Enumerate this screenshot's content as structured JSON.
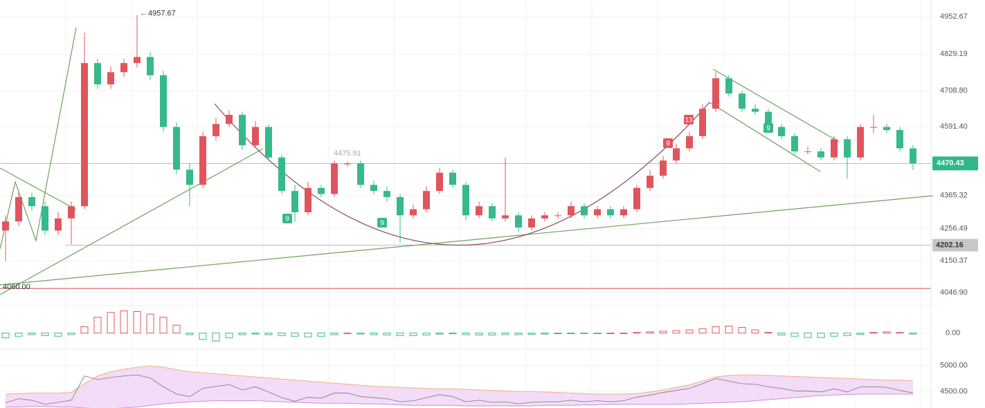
{
  "chart_data": {
    "type": "candlestick",
    "open": [
      4250,
      4280,
      4360,
      4330,
      4250,
      4290,
      4330,
      4800,
      4730,
      4770,
      4800,
      4820,
      4760,
      4590,
      4450,
      4400,
      4560,
      4600,
      4630,
      4530,
      4590,
      4490,
      4380,
      4310,
      4390,
      4370,
      4470,
      4470,
      4400,
      4380,
      4360,
      4300,
      4320,
      4380,
      4440,
      4400,
      4300,
      4330,
      4290,
      4300,
      4260,
      4290,
      4300,
      4300,
      4330,
      4300,
      4320,
      4300,
      4320,
      4390,
      4430,
      4480,
      4520,
      4560,
      4650,
      4750,
      4700,
      4650,
      4640,
      4590,
      4560,
      4510,
      4510,
      4490,
      4550,
      4490,
      4590,
      4590,
      4580,
      4520
    ],
    "high": [
      4300,
      4380,
      4375,
      4345,
      4310,
      4345,
      4900,
      4815,
      4790,
      4815,
      4957.67,
      4835,
      4775,
      4605,
      4470,
      4575,
      4620,
      4645,
      4640,
      4610,
      4600,
      4500,
      4400,
      4410,
      4400,
      4480,
      4475.91,
      4480,
      4415,
      4395,
      4370,
      4335,
      4395,
      4455,
      4450,
      4410,
      4345,
      4340,
      4490,
      4310,
      4300,
      4310,
      4310,
      4345,
      4340,
      4330,
      4330,
      4330,
      4400,
      4450,
      4495,
      4535,
      4575,
      4665,
      4770,
      4760,
      4710,
      4665,
      4650,
      4600,
      4570,
      4525,
      4520,
      4560,
      4560,
      4600,
      4630,
      4600,
      4590,
      4530
    ],
    "low": [
      4150,
      4265,
      4315,
      4235,
      4235,
      4205,
      4320,
      4715,
      4715,
      4755,
      4785,
      4745,
      4575,
      4435,
      4330,
      4390,
      4545,
      4590,
      4515,
      4520,
      4480,
      4370,
      4280,
      4300,
      4360,
      4360,
      4460,
      4390,
      4370,
      4345,
      4210,
      4290,
      4310,
      4370,
      4390,
      4285,
      4290,
      4280,
      4280,
      4245,
      4250,
      4280,
      4290,
      4290,
      4290,
      4290,
      4290,
      4290,
      4310,
      4380,
      4420,
      4470,
      4510,
      4550,
      4640,
      4690,
      4640,
      4630,
      4580,
      4550,
      4500,
      4500,
      4480,
      4480,
      4420,
      4480,
      4570,
      4570,
      4510,
      4450
    ],
    "close": [
      4280,
      4360,
      4330,
      4250,
      4290,
      4330,
      4800,
      4730,
      4770,
      4800,
      4820,
      4760,
      4590,
      4450,
      4400,
      4560,
      4600,
      4630,
      4530,
      4590,
      4490,
      4380,
      4310,
      4390,
      4370,
      4470,
      4470,
      4400,
      4380,
      4360,
      4300,
      4320,
      4380,
      4440,
      4400,
      4300,
      4330,
      4290,
      4300,
      4260,
      4290,
      4300,
      4300,
      4330,
      4300,
      4320,
      4300,
      4320,
      4390,
      4430,
      4480,
      4520,
      4560,
      4650,
      4750,
      4700,
      4650,
      4640,
      4590,
      4560,
      4510,
      4510,
      4490,
      4550,
      4490,
      4590,
      4590,
      4580,
      4520,
      4470.43
    ],
    "up_color": "#e0555d",
    "down_color": "#36b98c",
    "ylim": [
      4008,
      5007
    ],
    "yticks": [
      4952.67,
      4829.19,
      {
        "value": 4708.8,
        "label": "4708.80"
      },
      {
        "value": 4591.4,
        "label": "4591.40"
      },
      4365.32,
      4256.49,
      4150.37,
      {
        "value": 4046.9,
        "label": "4046.90"
      }
    ],
    "levels": [
      4202.16,
      {
        "value": 4060,
        "label": "4060.00"
      }
    ],
    "markers": [
      "9",
      "9",
      "9",
      "13",
      "9"
    ],
    "macd_hist": [
      -15,
      -10,
      -5,
      -8,
      -10,
      -5,
      20,
      50,
      65,
      70,
      68,
      60,
      50,
      25,
      -5,
      -20,
      -25,
      -15,
      -5,
      -3,
      -5,
      -8,
      -10,
      -12,
      -10,
      -5,
      0,
      -3,
      -5,
      -6,
      -8,
      -8,
      -6,
      -3,
      -2,
      -5,
      -6,
      -6,
      -5,
      -5,
      -4,
      -3,
      -2,
      -2,
      -1,
      -1,
      0,
      0,
      2,
      4,
      6,
      8,
      10,
      14,
      20,
      22,
      18,
      10,
      2,
      -6,
      -10,
      -14,
      -14,
      -10,
      -8,
      -4,
      2,
      4,
      2,
      -3
    ],
    "macd_ylim": [
      -40,
      80
    ],
    "macd_yticks": [
      {
        "value": 0,
        "label": "0.00"
      }
    ],
    "band_upper": [
      4450,
      4460,
      4470,
      4470,
      4470,
      4480,
      4650,
      4800,
      4880,
      4930,
      4970,
      4990,
      4970,
      4920,
      4880,
      4860,
      4840,
      4820,
      4800,
      4780,
      4760,
      4740,
      4720,
      4700,
      4680,
      4660,
      4640,
      4620,
      4600,
      4590,
      4580,
      4570,
      4560,
      4550,
      4550,
      4540,
      4530,
      4520,
      4510,
      4500,
      4500,
      4490,
      4480,
      4470,
      4460,
      4450,
      4450,
      4450,
      4460,
      4490,
      4530,
      4580,
      4630,
      4700,
      4780,
      4810,
      4820,
      4820,
      4810,
      4800,
      4790,
      4780,
      4770,
      4760,
      4750,
      4740,
      4730,
      4720,
      4720,
      4710
    ],
    "band_lower": [
      4200,
      4200,
      4210,
      4210,
      4200,
      4200,
      4180,
      4170,
      4170,
      4180,
      4200,
      4230,
      4260,
      4280,
      4300,
      4310,
      4320,
      4320,
      4320,
      4320,
      4310,
      4300,
      4290,
      4280,
      4270,
      4270,
      4270,
      4260,
      4260,
      4250,
      4240,
      4230,
      4230,
      4230,
      4230,
      4220,
      4220,
      4220,
      4220,
      4220,
      4220,
      4230,
      4230,
      4230,
      4240,
      4240,
      4250,
      4250,
      4250,
      4250,
      4250,
      4250,
      4260,
      4270,
      4280,
      4290,
      4300,
      4320,
      4340,
      4360,
      4380,
      4400,
      4420,
      4430,
      4440,
      4450,
      4450,
      4450,
      4450,
      4450
    ],
    "band_ylim": [
      4180,
      5250
    ],
    "band_yticks": [
      {
        "value": 5000,
        "label": "5000.00"
      },
      {
        "value": 4500,
        "label": "4500.00"
      }
    ]
  }
}
